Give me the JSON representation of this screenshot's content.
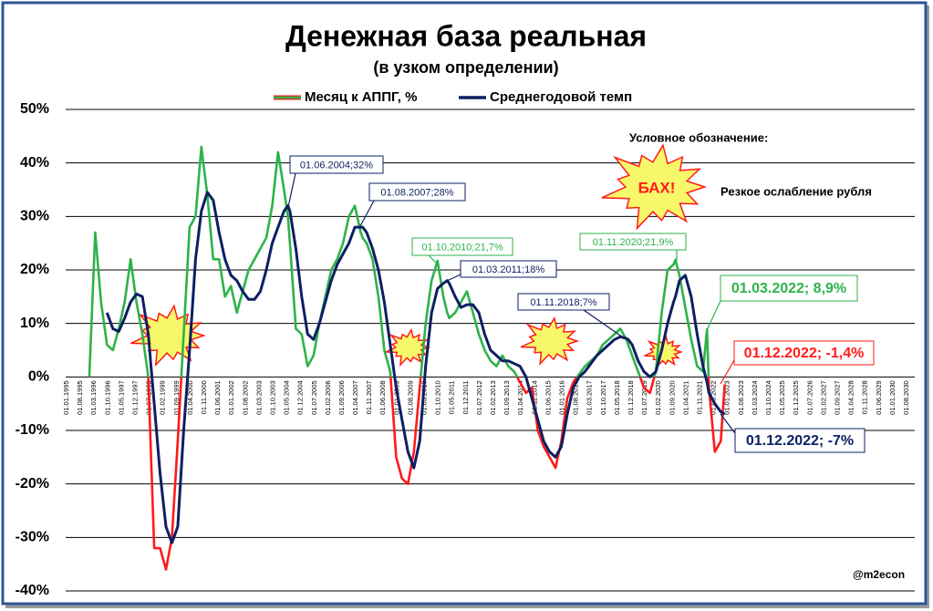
{
  "chart_data": {
    "type": "line",
    "title": "Денежная база реальная",
    "subtitle": "(в узком определении)",
    "x": [
      "01.01.1996",
      "01.04.1996",
      "01.07.1996",
      "01.10.1996",
      "01.01.1997",
      "01.04.1997",
      "01.07.1997",
      "01.10.1997",
      "01.01.1998",
      "01.04.1998",
      "01.07.1998",
      "01.10.1998",
      "01.01.1999",
      "01.04.1999",
      "01.07.1999",
      "01.10.1999",
      "01.01.2000",
      "01.04.2000",
      "01.07.2000",
      "01.10.2000",
      "01.01.2001",
      "01.04.2001",
      "01.07.2001",
      "01.10.2001",
      "01.01.2002",
      "01.04.2002",
      "01.07.2002",
      "01.10.2002",
      "01.01.2003",
      "01.04.2003",
      "01.07.2003",
      "01.10.2003",
      "01.01.2004",
      "01.04.2004",
      "01.06.2004",
      "01.07.2004",
      "01.10.2004",
      "01.01.2005",
      "01.04.2005",
      "01.07.2005",
      "01.10.2005",
      "01.01.2006",
      "01.04.2006",
      "01.07.2006",
      "01.10.2006",
      "01.01.2007",
      "01.04.2007",
      "01.07.2007",
      "01.08.2007",
      "01.10.2007",
      "01.01.2008",
      "01.04.2008",
      "01.07.2008",
      "01.10.2008",
      "01.01.2009",
      "01.04.2009",
      "01.07.2009",
      "01.10.2009",
      "01.01.2010",
      "01.04.2010",
      "01.07.2010",
      "01.10.2010",
      "01.01.2011",
      "01.03.2011",
      "01.04.2011",
      "01.07.2011",
      "01.10.2011",
      "01.01.2012",
      "01.04.2012",
      "01.07.2012",
      "01.10.2012",
      "01.01.2013",
      "01.04.2013",
      "01.07.2013",
      "01.10.2013",
      "01.01.2014",
      "01.04.2014",
      "01.07.2014",
      "01.10.2014",
      "01.01.2015",
      "01.04.2015",
      "01.07.2015",
      "01.10.2015",
      "01.01.2016",
      "01.04.2016",
      "01.07.2016",
      "01.10.2016",
      "01.01.2017",
      "01.04.2017",
      "01.07.2017",
      "01.10.2017",
      "01.01.2018",
      "01.04.2018",
      "01.07.2018",
      "01.10.2018",
      "01.11.2018",
      "01.01.2019",
      "01.04.2019",
      "01.07.2019",
      "01.10.2019",
      "01.01.2020",
      "01.04.2020",
      "01.07.2020",
      "01.10.2020",
      "01.11.2020",
      "01.01.2021",
      "01.04.2021",
      "01.07.2021",
      "01.10.2021",
      "01.01.2022",
      "01.03.2022",
      "01.04.2022",
      "01.07.2022",
      "01.10.2022",
      "01.12.2022"
    ],
    "series": [
      {
        "name": "Месяц к АППГ, %",
        "color": "#2db34a",
        "negative_color": "#ff1a1a",
        "values": [
          0,
          27,
          14,
          6,
          5,
          9,
          14,
          22,
          14,
          8,
          0,
          -32,
          -32,
          -36,
          -30,
          -12,
          8,
          28,
          30,
          43,
          34,
          22,
          22,
          15,
          17,
          12,
          16,
          20,
          22,
          24,
          26,
          32,
          42,
          35,
          30,
          25,
          9,
          8,
          2,
          4,
          10,
          15,
          20,
          22,
          25,
          30,
          32,
          27,
          26,
          25,
          22,
          15,
          5,
          1,
          -15,
          -19,
          -20,
          -14,
          -2,
          10,
          18,
          21.7,
          15,
          12,
          11,
          12,
          14,
          16,
          12,
          8,
          5,
          3,
          2,
          4,
          2,
          1,
          -1,
          -3,
          -2,
          -10,
          -13,
          -15,
          -17,
          -12,
          -4,
          -1,
          0.5,
          2,
          3,
          4,
          6,
          7,
          8,
          9,
          7,
          6,
          4,
          1,
          -2,
          -3,
          1,
          12,
          20,
          21,
          21.9,
          19,
          13,
          7,
          2,
          1,
          8.9,
          -2,
          -14,
          -12,
          -1.4
        ]
      },
      {
        "name": "Среднегодовой темп",
        "color": "#0d1f63",
        "values": [
          null,
          null,
          null,
          12,
          9,
          8.5,
          11,
          14,
          15.5,
          15,
          8,
          -5,
          -18,
          -28,
          -31,
          -28,
          -10,
          5,
          22,
          31,
          34.5,
          33,
          27,
          22,
          19,
          18,
          16,
          14.5,
          14.5,
          16,
          20,
          25,
          28,
          31,
          32,
          31,
          24,
          15,
          8,
          7,
          10,
          14,
          18,
          21,
          23,
          25,
          28,
          28,
          28,
          27,
          24,
          20,
          14,
          6,
          -2,
          -8,
          -14,
          -17,
          -12,
          2,
          12,
          16.5,
          17.5,
          18,
          17.5,
          15,
          13,
          13.5,
          13.5,
          12,
          8,
          5,
          4,
          3,
          3,
          2.5,
          2,
          0,
          -4,
          -8,
          -12,
          -14,
          -15,
          -13,
          -7,
          -2,
          0,
          1,
          2.5,
          4,
          5,
          6,
          7,
          7.5,
          7.2,
          7,
          6,
          3,
          1,
          0,
          1,
          5,
          10,
          14,
          15,
          18,
          19,
          15,
          8,
          2,
          -1,
          -3,
          -5,
          -6.5,
          -7
        ]
      }
    ],
    "xlim": [
      "01.01.1995",
      "01.08.2030"
    ],
    "xticks": [
      "01.01.1995",
      "01.08.1995",
      "01.03.1996",
      "01.10.1996",
      "01.05.1997",
      "01.12.1997",
      "01.07.1998",
      "01.02.1999",
      "01.09.1999",
      "01.04.2000",
      "01.11.2000",
      "01.06.2001",
      "01.01.2002",
      "01.08.2002",
      "01.03.2003",
      "01.10.2003",
      "01.05.2004",
      "01.12.2004",
      "01.07.2005",
      "01.02.2006",
      "01.09.2006",
      "01.04.2007",
      "01.11.2007",
      "01.06.2008",
      "01.01.2009",
      "01.08.2009",
      "01.03.2010",
      "01.10.2010",
      "01.05.2011",
      "01.12.2011",
      "01.07.2012",
      "01.02.2013",
      "01.09.2013",
      "01.04.2014",
      "01.11.2014",
      "01.06.2015",
      "01.01.2016",
      "01.08.2016",
      "01.03.2017",
      "01.10.2017",
      "01.05.2018",
      "01.12.2018",
      "01.07.2019",
      "01.02.2020",
      "01.09.2020",
      "01.04.2021",
      "01.11.2021",
      "01.06.2022",
      "01.01.2023",
      "01.08.2023",
      "01.03.2024",
      "01.10.2024",
      "01.05.2025",
      "01.12.2025",
      "01.07.2026",
      "01.02.2027",
      "01.09.2027",
      "01.04.2028",
      "01.11.2028",
      "01.06.2029",
      "01.01.2030",
      "01.08.2030"
    ],
    "ylim": [
      -40,
      50
    ],
    "yticks": [
      {
        "value": -40,
        "label": "-40%"
      },
      {
        "value": -30,
        "label": "-30%"
      },
      {
        "value": -20,
        "label": "-20%"
      },
      {
        "value": -10,
        "label": "-10%"
      },
      {
        "value": 0,
        "label": "0%"
      },
      {
        "value": 10,
        "label": "10%"
      },
      {
        "value": 20,
        "label": "20%"
      },
      {
        "value": 30,
        "label": "30%"
      },
      {
        "value": 40,
        "label": "40%"
      },
      {
        "value": 50,
        "label": "50%"
      }
    ],
    "grid": true,
    "annotations": [
      {
        "text": "01.06.2004;32%",
        "color": "#0d1f63"
      },
      {
        "text": "01.08.2007;28%",
        "color": "#0d1f63"
      },
      {
        "text": "01.10.2010;21,7%",
        "color": "#2db34a"
      },
      {
        "text": "01.03.2011;18%",
        "color": "#0d1f63"
      },
      {
        "text": "01.11.2018;7%",
        "color": "#0d1f63"
      },
      {
        "text": "01.11.2020;21,9%",
        "color": "#2db34a"
      },
      {
        "text": "01.03.2022; 8,9%",
        "color": "#2db34a"
      },
      {
        "text": "01.12.2022; -1,4%",
        "color": "#ff1a1a"
      },
      {
        "text": "01.12.2022; -7%",
        "color": "#0d1f63"
      }
    ],
    "key_title": "Условное обозначение:",
    "key_burst": "БАХ!",
    "key_text": "Резкое ослабление рубля",
    "credit": "@m2econ"
  }
}
